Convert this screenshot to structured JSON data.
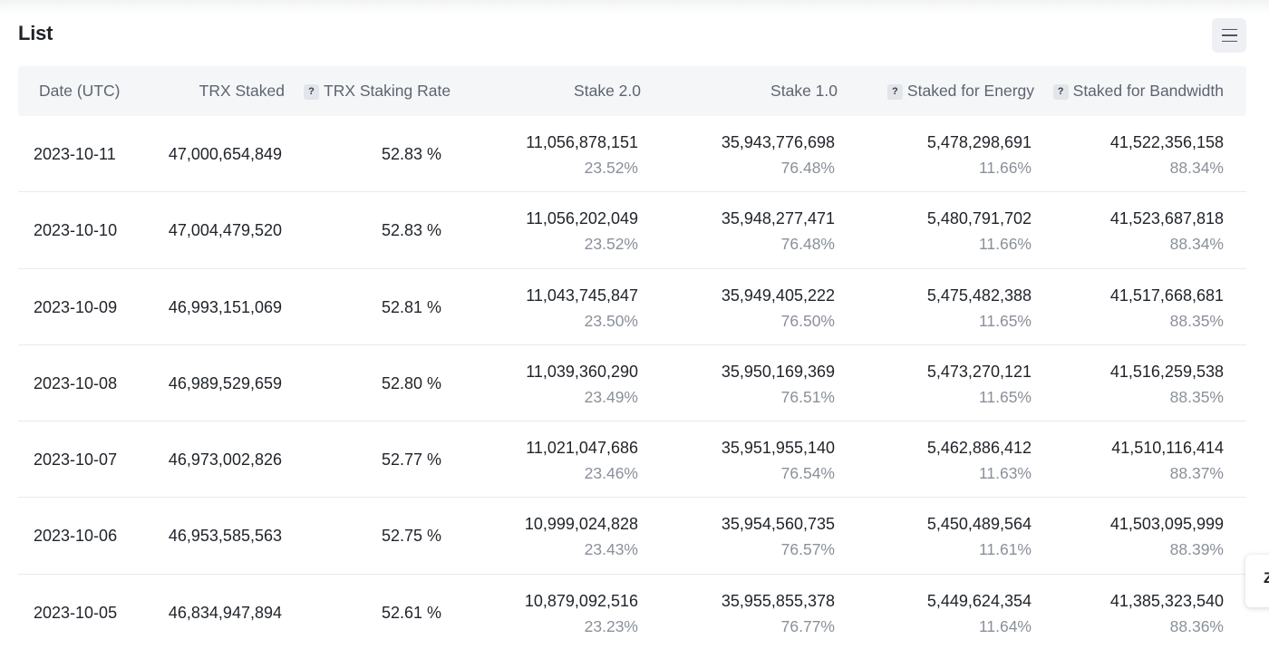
{
  "title": "List",
  "menu_icon": "hamburger-menu-icon",
  "side_tab_text": "Z",
  "columns": [
    {
      "label": "Date (UTC)",
      "help": false
    },
    {
      "label": "TRX Staked",
      "help": false
    },
    {
      "label": "TRX Staking Rate",
      "help": true
    },
    {
      "label": "Stake 2.0",
      "help": false
    },
    {
      "label": "Stake 1.0",
      "help": false
    },
    {
      "label": "Staked for Energy",
      "help": true
    },
    {
      "label": "Staked for Bandwidth",
      "help": true
    }
  ],
  "help_glyph": "?",
  "rows": [
    {
      "date": "2023-10-11",
      "staked": "47,000,654,849",
      "rate": "52.83 %",
      "stake2": "11,056,878,151",
      "stake2_pct": "23.52%",
      "stake1": "35,943,776,698",
      "stake1_pct": "76.48%",
      "energy": "5,478,298,691",
      "energy_pct": "11.66%",
      "bandwidth": "41,522,356,158",
      "bandwidth_pct": "88.34%"
    },
    {
      "date": "2023-10-10",
      "staked": "47,004,479,520",
      "rate": "52.83 %",
      "stake2": "11,056,202,049",
      "stake2_pct": "23.52%",
      "stake1": "35,948,277,471",
      "stake1_pct": "76.48%",
      "energy": "5,480,791,702",
      "energy_pct": "11.66%",
      "bandwidth": "41,523,687,818",
      "bandwidth_pct": "88.34%"
    },
    {
      "date": "2023-10-09",
      "staked": "46,993,151,069",
      "rate": "52.81 %",
      "stake2": "11,043,745,847",
      "stake2_pct": "23.50%",
      "stake1": "35,949,405,222",
      "stake1_pct": "76.50%",
      "energy": "5,475,482,388",
      "energy_pct": "11.65%",
      "bandwidth": "41,517,668,681",
      "bandwidth_pct": "88.35%"
    },
    {
      "date": "2023-10-08",
      "staked": "46,989,529,659",
      "rate": "52.80 %",
      "stake2": "11,039,360,290",
      "stake2_pct": "23.49%",
      "stake1": "35,950,169,369",
      "stake1_pct": "76.51%",
      "energy": "5,473,270,121",
      "energy_pct": "11.65%",
      "bandwidth": "41,516,259,538",
      "bandwidth_pct": "88.35%"
    },
    {
      "date": "2023-10-07",
      "staked": "46,973,002,826",
      "rate": "52.77 %",
      "stake2": "11,021,047,686",
      "stake2_pct": "23.46%",
      "stake1": "35,951,955,140",
      "stake1_pct": "76.54%",
      "energy": "5,462,886,412",
      "energy_pct": "11.63%",
      "bandwidth": "41,510,116,414",
      "bandwidth_pct": "88.37%"
    },
    {
      "date": "2023-10-06",
      "staked": "46,953,585,563",
      "rate": "52.75 %",
      "stake2": "10,999,024,828",
      "stake2_pct": "23.43%",
      "stake1": "35,954,560,735",
      "stake1_pct": "76.57%",
      "energy": "5,450,489,564",
      "energy_pct": "11.61%",
      "bandwidth": "41,503,095,999",
      "bandwidth_pct": "88.39%"
    },
    {
      "date": "2023-10-05",
      "staked": "46,834,947,894",
      "rate": "52.61 %",
      "stake2": "10,879,092,516",
      "stake2_pct": "23.23%",
      "stake1": "35,955,855,378",
      "stake1_pct": "76.77%",
      "energy": "5,449,624,354",
      "energy_pct": "11.64%",
      "bandwidth": "41,385,323,540",
      "bandwidth_pct": "88.36%"
    }
  ]
}
